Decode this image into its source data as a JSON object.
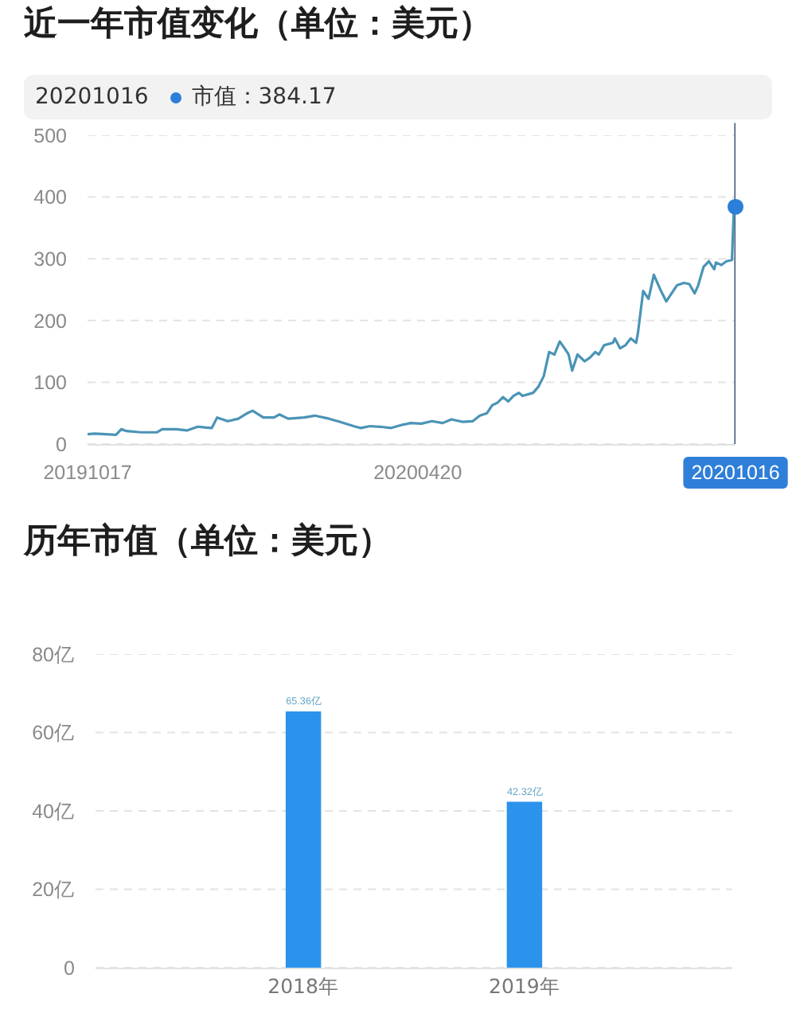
{
  "chart_data": [
    {
      "type": "line",
      "title": "近一年市值变化（单位：美元）",
      "annotations": [
        "20201016",
        "市值：384.17"
      ],
      "series": [
        {
          "type": "line",
          "color": "#4a94b6",
          "x": [
            "2019-10-17",
            "2019-10-21",
            "2019-11-02",
            "2019-11-05",
            "2019-11-08",
            "2019-11-16",
            "2019-11-25",
            "2019-11-28",
            "2019-12-06",
            "2019-12-12",
            "2019-12-18",
            "2019-12-26",
            "2019-12-29",
            "2020-01-04",
            "2020-01-10",
            "2020-01-15",
            "2020-01-18",
            "2020-01-24",
            "2020-01-30",
            "2020-02-02",
            "2020-02-07",
            "2020-02-16",
            "2020-02-22",
            "2020-03-01",
            "2020-03-07",
            "2020-03-16",
            "2020-03-19",
            "2020-03-24",
            "2020-03-30",
            "2020-04-05",
            "2020-04-11",
            "2020-04-16",
            "2020-04-22",
            "2020-04-28",
            "2020-05-04",
            "2020-05-09",
            "2020-05-15",
            "2020-05-21",
            "2020-05-25",
            "2020-05-29",
            "2020-06-01",
            "2020-06-04",
            "2020-06-07",
            "2020-06-10",
            "2020-06-13",
            "2020-06-16",
            "2020-06-18",
            "2020-06-24",
            "2020-06-27",
            "2020-06-30",
            "2020-07-03",
            "2020-07-06",
            "2020-07-09",
            "2020-07-11",
            "2020-07-14",
            "2020-07-16",
            "2020-07-19",
            "2020-07-23",
            "2020-07-26",
            "2020-07-29",
            "2020-07-31",
            "2020-08-03",
            "2020-08-08",
            "2020-08-09",
            "2020-08-12",
            "2020-08-15",
            "2020-08-18",
            "2020-08-21",
            "2020-08-22",
            "2020-08-25",
            "2020-08-28",
            "2020-08-31",
            "2020-09-04",
            "2020-09-07",
            "2020-09-10",
            "2020-09-13",
            "2020-09-17",
            "2020-09-20",
            "2020-09-23",
            "2020-09-25",
            "2020-09-28",
            "2020-10-01",
            "2020-10-04",
            "2020-10-05",
            "2020-10-08",
            "2020-10-11",
            "2020-10-14",
            "2020-10-15",
            "2020-10-16"
          ],
          "values": [
            16,
            17,
            15,
            24,
            21,
            19,
            19,
            24,
            24,
            22,
            28,
            26,
            43,
            37,
            41,
            50,
            54,
            43,
            43,
            48,
            41,
            43,
            46,
            41,
            36,
            28,
            26,
            29,
            28,
            26,
            31,
            34,
            33,
            37,
            34,
            40,
            36,
            37,
            46,
            50,
            63,
            67,
            76,
            69,
            78,
            83,
            78,
            83,
            93,
            110,
            149,
            145,
            166,
            158,
            145,
            119,
            145,
            134,
            140,
            149,
            145,
            160,
            164,
            171,
            155,
            160,
            171,
            164,
            179,
            248,
            235,
            274,
            248,
            231,
            244,
            257,
            261,
            259,
            244,
            257,
            287,
            296,
            283,
            294,
            290,
            296,
            298,
            375,
            384.17
          ]
        },
        {
          "type": "scatter",
          "color": "#2c7fd9",
          "marker": "circle",
          "x": [
            "2020-10-16"
          ],
          "values": [
            384.17
          ]
        }
      ],
      "xlim": [
        "2019-10-17",
        "2020-10-16"
      ],
      "xticks": [
        {
          "value": "2019-10-17",
          "label": "20191017"
        },
        {
          "value": "2020-04-20",
          "label": "20200420"
        },
        {
          "value": "2020-10-16",
          "label": "20201016"
        }
      ],
      "ylim": [
        0,
        500
      ],
      "yticks": [
        0,
        100,
        200,
        300,
        400,
        500
      ],
      "ref_lines": [
        {
          "axis": "x",
          "value": "2020-10-16",
          "color": "#3b5675"
        }
      ],
      "grid": "y"
    },
    {
      "type": "bar",
      "title": "历年市值（单位：美元）",
      "categories": [
        "2018年",
        "2019年"
      ],
      "values": [
        65.36,
        42.32
      ],
      "value_labels": [
        "65.36亿",
        "42.32亿"
      ],
      "color": "#2b93ec",
      "ylim": [
        0,
        80
      ],
      "yticks": [
        0,
        {
          "value": 20,
          "label": "20亿"
        },
        {
          "value": 40,
          "label": "40亿"
        },
        {
          "value": 60,
          "label": "60亿"
        },
        {
          "value": 80,
          "label": "80亿"
        }
      ],
      "grid": "y"
    }
  ]
}
